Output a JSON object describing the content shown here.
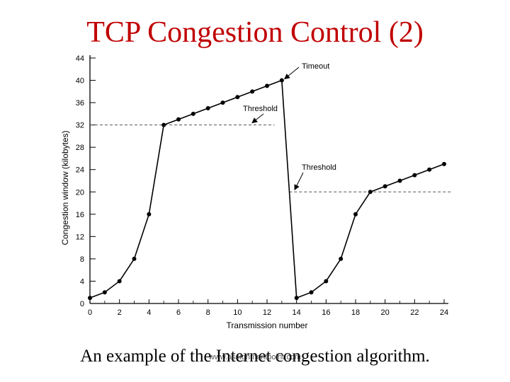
{
  "slide": {
    "title": "TCP Congestion Control (2)",
    "caption": "An example of the Internet congestion algorithm.",
    "watermark": "www.assignmentpoint.com"
  },
  "chart_data": {
    "type": "line",
    "title": "",
    "xlabel": "Transmission number",
    "ylabel": "Congestion window (kilobytes)",
    "xlim": [
      0,
      24
    ],
    "ylim": [
      0,
      44
    ],
    "xticks": [
      0,
      2,
      4,
      6,
      8,
      10,
      12,
      14,
      16,
      18,
      20,
      22,
      24
    ],
    "yticks": [
      0,
      4,
      8,
      12,
      16,
      20,
      24,
      28,
      32,
      36,
      40,
      44
    ],
    "x": [
      0,
      1,
      2,
      3,
      4,
      5,
      6,
      7,
      8,
      9,
      10,
      11,
      12,
      13,
      14,
      15,
      16,
      17,
      18,
      19,
      20,
      21,
      22,
      23,
      24
    ],
    "series": [
      {
        "name": "Congestion window",
        "values": [
          1,
          2,
          4,
          8,
          16,
          32,
          33,
          34,
          35,
          36,
          37,
          38,
          39,
          40,
          1,
          2,
          4,
          8,
          16,
          20,
          21,
          22,
          23,
          24,
          25
        ]
      }
    ],
    "thresholds": [
      {
        "label": "Threshold",
        "value": 32,
        "from": 0,
        "to": 12.5
      },
      {
        "label": "Threshold",
        "value": 20,
        "from": 13.5,
        "to": 24.5
      }
    ],
    "annotations": [
      {
        "text": "Timeout",
        "x": 13,
        "y": 40
      },
      {
        "text": "Threshold",
        "x": 11,
        "y": 32
      },
      {
        "text": "Threshold",
        "x": 14,
        "y": 20
      }
    ],
    "colors": {
      "line": "#000000",
      "threshold": "#555555"
    }
  }
}
